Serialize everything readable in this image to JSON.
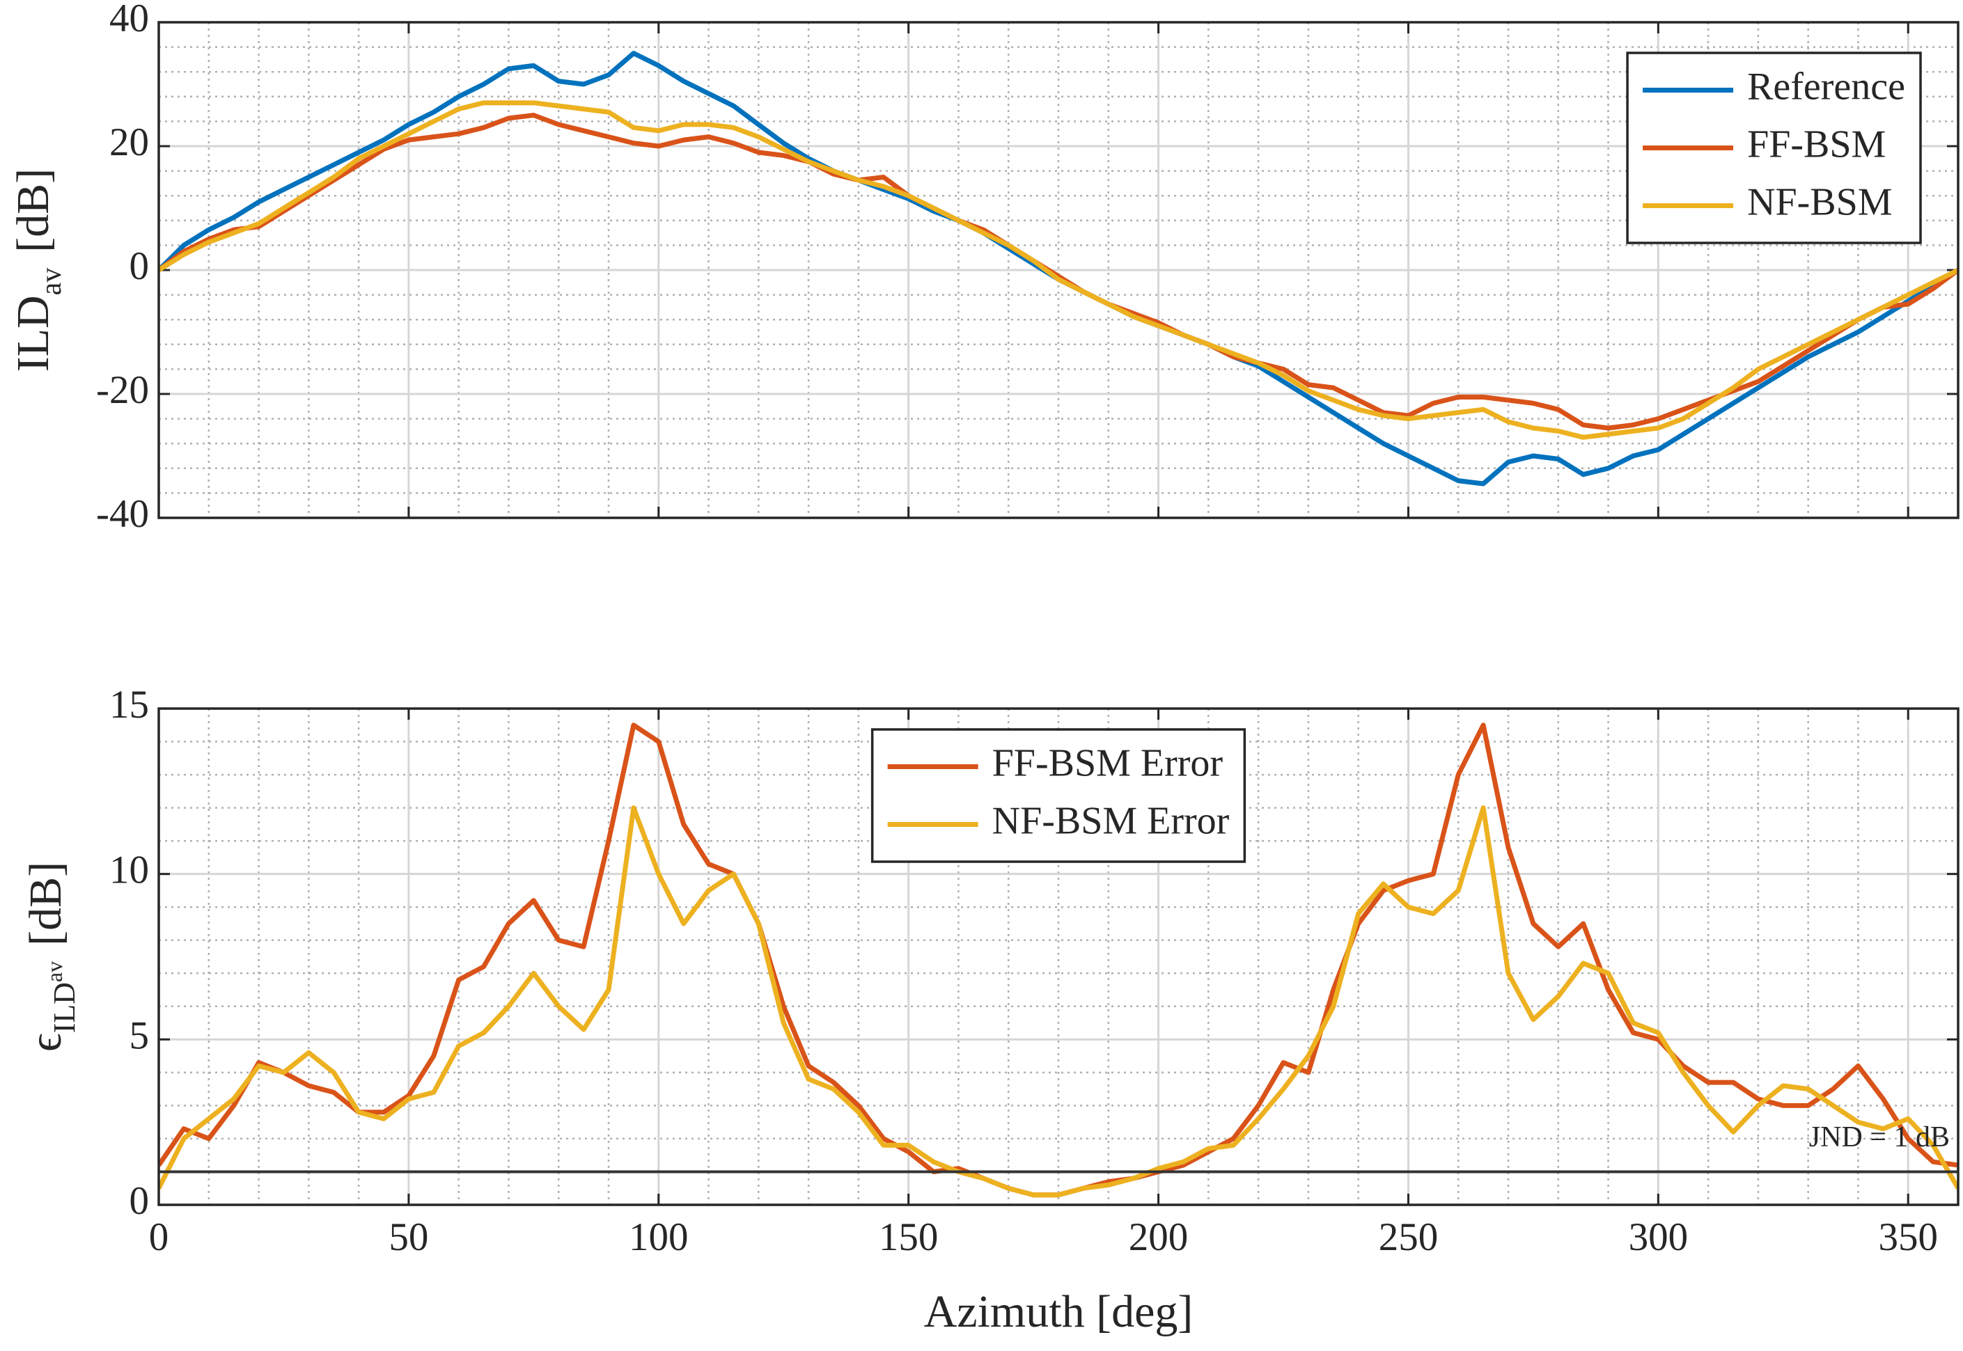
{
  "chart_data": [
    {
      "type": "line",
      "ylabel": {
        "text": "ILD",
        "sub": "av",
        "unit": "[dB]"
      },
      "x": [
        0,
        5,
        10,
        15,
        20,
        25,
        30,
        35,
        40,
        45,
        50,
        55,
        60,
        65,
        70,
        75,
        80,
        85,
        90,
        95,
        100,
        105,
        110,
        115,
        120,
        125,
        130,
        135,
        140,
        145,
        150,
        155,
        160,
        165,
        170,
        175,
        180,
        185,
        190,
        195,
        200,
        205,
        210,
        215,
        220,
        225,
        230,
        235,
        240,
        245,
        250,
        255,
        260,
        265,
        270,
        275,
        280,
        285,
        290,
        295,
        300,
        305,
        310,
        315,
        320,
        325,
        330,
        335,
        340,
        345,
        350,
        355,
        360
      ],
      "series": [
        {
          "name": "Reference",
          "color": "#0072bd",
          "values": [
            0,
            4,
            6.5,
            8.5,
            11,
            13,
            15,
            17,
            19,
            21,
            23.5,
            25.5,
            28,
            30,
            32.5,
            33,
            30.5,
            30,
            31.5,
            35,
            33,
            30.5,
            28.5,
            26.5,
            23.5,
            20.5,
            18,
            16,
            14.5,
            13,
            11.5,
            9.5,
            8,
            6,
            3.5,
            1,
            -1.5,
            -3.5,
            -5.5,
            -7.5,
            -9,
            -10.5,
            -12,
            -14,
            -15.5,
            -18,
            -20.5,
            -23,
            -25.5,
            -28,
            -30,
            -32,
            -34,
            -34.5,
            -31,
            -30,
            -30.5,
            -33,
            -32,
            -30,
            -29,
            -26.5,
            -24,
            -21.5,
            -19,
            -16.5,
            -14,
            -12,
            -10,
            -7.5,
            -5,
            -2.5,
            0
          ]
        },
        {
          "name": "FF-BSM",
          "color": "#d95319",
          "values": [
            0,
            3,
            5,
            6.5,
            7,
            9.5,
            12,
            14.5,
            17,
            19.5,
            21,
            21.5,
            22,
            23,
            24.5,
            25,
            23.5,
            22.5,
            21.5,
            20.5,
            20,
            21,
            21.5,
            20.5,
            19,
            18.5,
            17.5,
            15.5,
            14.5,
            15,
            12,
            10,
            8,
            6.5,
            4,
            1.5,
            -1,
            -3.5,
            -5.5,
            -7,
            -8.5,
            -10.5,
            -12,
            -14,
            -15,
            -16,
            -18.5,
            -19,
            -21,
            -23,
            -23.5,
            -21.5,
            -20.5,
            -20.5,
            -21,
            -21.5,
            -22.5,
            -25,
            -25.5,
            -25,
            -24,
            -22.5,
            -21,
            -19.5,
            -18,
            -15.5,
            -13,
            -10.5,
            -8,
            -6,
            -5.5,
            -3,
            0
          ]
        },
        {
          "name": "NF-BSM",
          "color": "#edb120",
          "values": [
            0,
            2.5,
            4.5,
            6,
            7.5,
            10,
            12.5,
            15,
            18,
            20,
            22,
            24,
            26,
            27,
            27,
            27,
            26.5,
            26,
            25.5,
            23,
            22.5,
            23.5,
            23.5,
            23,
            21.5,
            19.5,
            17.5,
            16,
            14.5,
            13.5,
            12,
            10,
            8,
            6,
            4,
            1.5,
            -1.5,
            -3.5,
            -5.5,
            -7.5,
            -9,
            -10.5,
            -12,
            -13.5,
            -15,
            -17,
            -19.5,
            -21,
            -22.5,
            -23.5,
            -24,
            -23.5,
            -23,
            -22.5,
            -24.5,
            -25.5,
            -26,
            -27,
            -26.5,
            -26,
            -25.5,
            -24,
            -21.5,
            -19,
            -16,
            -14,
            -12,
            -10,
            -8,
            -6,
            -4,
            -2,
            0
          ]
        }
      ],
      "xlim": [
        0,
        360
      ],
      "xticks": [
        0,
        50,
        100,
        150,
        200,
        250,
        300,
        350
      ],
      "show_xtick_labels": false,
      "ylim": [
        -40,
        40
      ],
      "yticks": [
        -40,
        -20,
        0,
        20,
        40
      ],
      "grid": true,
      "minor_grid": true,
      "legend": "upper right"
    },
    {
      "type": "line",
      "ylabel": {
        "text": "ϵ",
        "sub": "ILD",
        "subsub": "av",
        "unit": "[dB]"
      },
      "xlabel": "Azimuth [deg]",
      "x": [
        0,
        5,
        10,
        15,
        20,
        25,
        30,
        35,
        40,
        45,
        50,
        55,
        60,
        65,
        70,
        75,
        80,
        85,
        90,
        95,
        100,
        105,
        110,
        115,
        120,
        125,
        130,
        135,
        140,
        145,
        150,
        155,
        160,
        165,
        170,
        175,
        180,
        185,
        190,
        195,
        200,
        205,
        210,
        215,
        220,
        225,
        230,
        235,
        240,
        245,
        250,
        255,
        260,
        265,
        270,
        275,
        280,
        285,
        290,
        295,
        300,
        305,
        310,
        315,
        320,
        325,
        330,
        335,
        340,
        345,
        350,
        355,
        360
      ],
      "series": [
        {
          "name": "FF-BSM Error",
          "color": "#d95319",
          "values": [
            1.2,
            2.3,
            2,
            3,
            4.3,
            4,
            3.6,
            3.4,
            2.8,
            2.8,
            3.3,
            4.5,
            6.8,
            7.2,
            8.5,
            9.2,
            8,
            7.8,
            11,
            14.5,
            14,
            11.5,
            10.3,
            10,
            8.5,
            6,
            4.2,
            3.7,
            3,
            2,
            1.6,
            1,
            1.1,
            0.8,
            0.5,
            0.3,
            0.3,
            0.5,
            0.7,
            0.8,
            1,
            1.2,
            1.6,
            2,
            3,
            4.3,
            4,
            6.5,
            8.5,
            9.5,
            9.8,
            10,
            13,
            14.5,
            10.8,
            8.5,
            7.8,
            8.5,
            6.5,
            5.2,
            5,
            4.2,
            3.7,
            3.7,
            3.2,
            3,
            3,
            3.5,
            4.2,
            3.2,
            2,
            1.3,
            1.2
          ]
        },
        {
          "name": "NF-BSM Error",
          "color": "#edb120",
          "values": [
            0.5,
            2,
            2.6,
            3.2,
            4.2,
            4,
            4.6,
            4,
            2.8,
            2.6,
            3.2,
            3.4,
            4.8,
            5.2,
            6,
            7,
            6,
            5.3,
            6.5,
            12,
            10,
            8.5,
            9.5,
            10,
            8.5,
            5.5,
            3.8,
            3.5,
            2.8,
            1.8,
            1.8,
            1.3,
            1,
            0.8,
            0.5,
            0.3,
            0.3,
            0.5,
            0.6,
            0.8,
            1.1,
            1.3,
            1.7,
            1.8,
            2.6,
            3.5,
            4.5,
            6,
            8.8,
            9.7,
            9,
            8.8,
            9.5,
            12,
            7,
            5.6,
            6.3,
            7.3,
            7,
            5.5,
            5.2,
            4,
            3,
            2.2,
            3,
            3.6,
            3.5,
            3,
            2.5,
            2.3,
            2.6,
            1.8,
            0.5
          ]
        }
      ],
      "hlines": [
        {
          "value": 1,
          "label": "JND = 1 dB",
          "color": "#333333"
        }
      ],
      "xlim": [
        0,
        360
      ],
      "xticks": [
        0,
        50,
        100,
        150,
        200,
        250,
        300,
        350
      ],
      "show_xtick_labels": true,
      "ylim": [
        0,
        15
      ],
      "yticks": [
        0,
        5,
        10,
        15
      ],
      "grid": true,
      "minor_grid": true,
      "legend": "upper center"
    }
  ]
}
